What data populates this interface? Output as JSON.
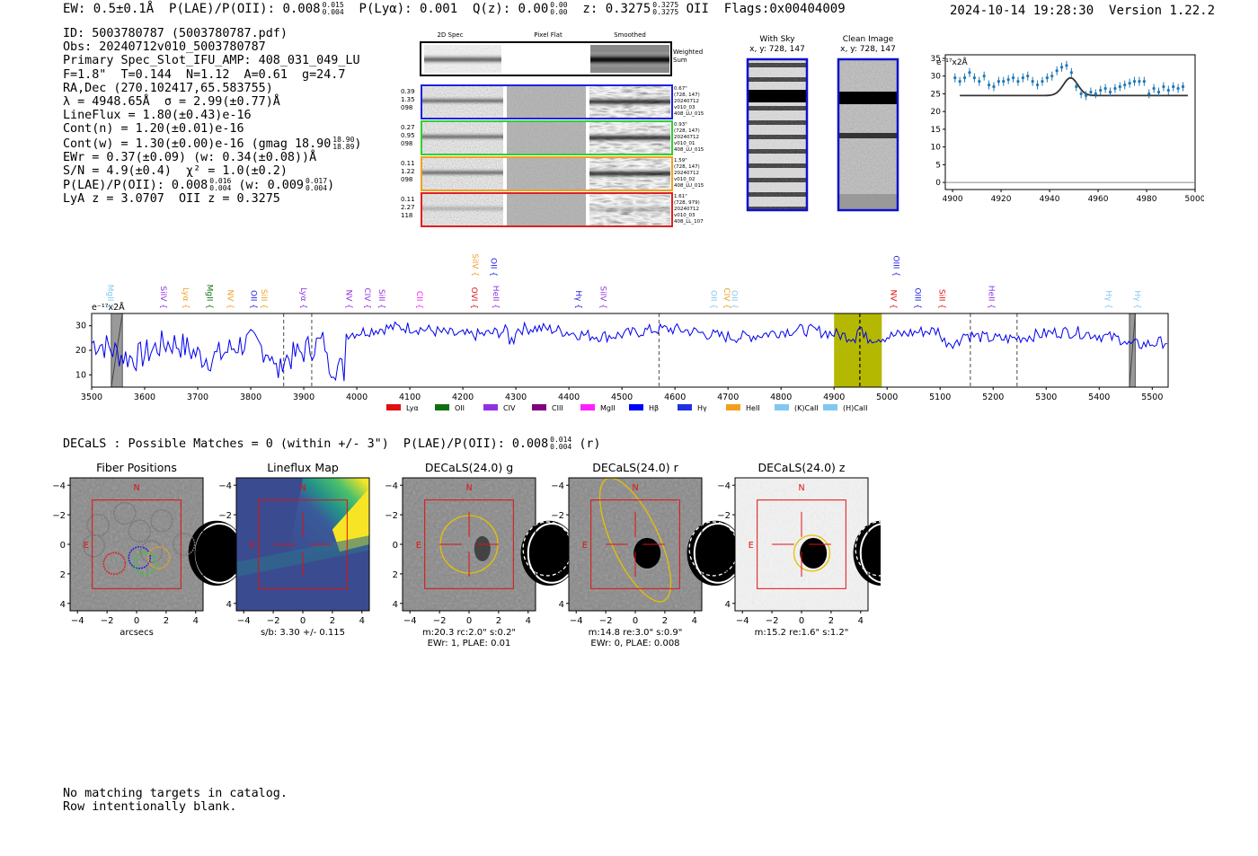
{
  "header": {
    "ew": "EW: 0.5±0.1Å",
    "plae_label": "P(LAE)/P(OII): 0.008",
    "plae_hi": "0.015",
    "plae_lo": "0.004",
    "plya": "P(Lyα): 0.001",
    "qz_label": "Q(z): 0.00",
    "qz_hi": "0.00",
    "qz_lo": "0.00",
    "z_label": "z: 0.3275",
    "z_hi": "0.3275",
    "z_lo": "0.3275",
    "z_line": "OII",
    "flags": "Flags:0x00404009",
    "datetime": "2024-10-14 19:28:30",
    "version": "Version 1.22.2"
  },
  "info": {
    "id": "ID: 5003780787 (5003780787.pdf)",
    "obs": "Obs: 20240712v010_5003780787",
    "primary": "Primary Spec_Slot_IFU_AMP: 408_031_049_LU",
    "params": "F=1.8\"  T=0.144  N=1.12  A=0.61  g=24.7",
    "radec": "RA,Dec (270.102417,65.583755)",
    "lambda": "λ = 4948.65Å  σ = 2.99(±0.77)Å",
    "lineflux": "LineFlux = 1.80(±0.43)e-16",
    "contn": "Cont(n) = 1.20(±0.01)e-16",
    "contw": "Cont(w) = 1.30(±0.00)e-16 (gmag 18.90",
    "gmag_hi": "18.90",
    "gmag_lo": "18.89",
    "ewr": "EWr = 0.37(±0.09) (w: 0.34(±0.08))Å",
    "sn": "S/N = 4.9(±0.4)  χ² = 1.0(±0.2)",
    "plae": "P(LAE)/P(OII): 0.008",
    "plae_hi": "0.016",
    "plae_lo": "0.004",
    "plae_w": "(w: 0.009",
    "plae_w_hi": "0.017",
    "plae_w_lo": "0.004",
    "lya_z": "LyA z = 3.0707  OII z = 0.3275"
  },
  "cutouts": {
    "col_2d": "2D Spec",
    "col_flat": "Pixel Flat",
    "col_smooth": "Smoothed",
    "weighted_1": "Weighted",
    "weighted_2": "Sum",
    "rows": [
      {
        "left": [
          "0.39",
          "1.35",
          "098"
        ],
        "right": [
          "0.67\"",
          "(728, 147)",
          "20240712",
          "v010_03",
          "408_LU_015"
        ],
        "color": "#2020e0"
      },
      {
        "left": [
          "0.27",
          "0.95",
          "098"
        ],
        "right": [
          "0.93\"",
          "(728, 147)",
          "20240712",
          "v010_01",
          "408_LU_015"
        ],
        "color": "#30d030"
      },
      {
        "left": [
          "0.11",
          "1.22",
          "098"
        ],
        "right": [
          "1.59\"",
          "(728, 147)",
          "20240712",
          "v010_02",
          "408_LU_015"
        ],
        "color": "#f0a020"
      },
      {
        "left": [
          "0.11",
          "2.27",
          "118"
        ],
        "right": [
          "1.61\"",
          "(728, 979)",
          "20240712",
          "v010_03",
          "408_LL_107"
        ],
        "color": "#e02020"
      }
    ]
  },
  "sky": {
    "with_sky_title": "With Sky",
    "with_sky_xy": "x, y: 728, 147",
    "clean_title": "Clean Image",
    "clean_xy": "x, y: 728, 147"
  },
  "zoom_plot": {
    "unit_label": "e⁻¹⁷x2Å",
    "xticks": [
      "4900",
      "4920",
      "4940",
      "4960",
      "4980",
      "5000"
    ],
    "yticks": [
      "0",
      "5",
      "10",
      "15",
      "20",
      "25",
      "30",
      "35"
    ]
  },
  "chart_data": [
    {
      "type": "scatter",
      "title": "",
      "xlabel": "wavelength (Å)",
      "ylabel": "e⁻¹⁷x2Å",
      "xlim": [
        4897,
        5000
      ],
      "ylim": [
        -2,
        36
      ],
      "x": [
        4901,
        4903,
        4905,
        4907,
        4909,
        4911,
        4913,
        4915,
        4917,
        4919,
        4921,
        4923,
        4925,
        4927,
        4929,
        4931,
        4933,
        4935,
        4937,
        4939,
        4941,
        4943,
        4945,
        4947,
        4949,
        4951,
        4953,
        4955,
        4957,
        4959,
        4961,
        4963,
        4965,
        4967,
        4969,
        4971,
        4973,
        4975,
        4977,
        4979,
        4981,
        4983,
        4985,
        4987,
        4989,
        4991,
        4993,
        4995
      ],
      "y": [
        29.5,
        28.5,
        29.5,
        31,
        29.5,
        28.5,
        30,
        27.5,
        27,
        28.5,
        28.5,
        29,
        29.5,
        28.5,
        29.5,
        30,
        28.5,
        27.5,
        28.5,
        29.5,
        30,
        31.5,
        32.5,
        33,
        31,
        27,
        25,
        24.5,
        25.5,
        25,
        26,
        26.5,
        25.5,
        26.5,
        27,
        27.5,
        28,
        28.5,
        28.5,
        28.5,
        25,
        26.5,
        25.5,
        27,
        26,
        27,
        26.5,
        27
      ],
      "fit_model": {
        "baseline": 24.5,
        "peak": 29.5,
        "center": 4948.65,
        "sigma": 2.99
      }
    },
    {
      "type": "line",
      "title": "",
      "xlabel": "",
      "ylabel": "e⁻¹⁷x2Å",
      "xlim": [
        3500,
        5530
      ],
      "ylim": [
        5,
        35
      ],
      "xticks": [
        3500,
        3600,
        3700,
        3800,
        3900,
        4000,
        4100,
        4200,
        4300,
        4400,
        4500,
        4600,
        4700,
        4800,
        4900,
        5000,
        5100,
        5200,
        5300,
        5400,
        5500
      ],
      "yticks": [
        10,
        20,
        30
      ],
      "highlight_range": [
        4900,
        4990
      ],
      "line_marker": 4948.65,
      "legend": [
        {
          "name": "Lyα",
          "color": "#e01010"
        },
        {
          "name": "OII",
          "color": "#107010"
        },
        {
          "name": "CIV",
          "color": "#9030e0"
        },
        {
          "name": "CIII",
          "color": "#800080"
        },
        {
          "name": "MgII",
          "color": "#ff20ff"
        },
        {
          "name": "Hβ",
          "color": "#0000ff"
        },
        {
          "name": "Hγ",
          "color": "#2030e0"
        },
        {
          "name": "HeII",
          "color": "#f0a020"
        },
        {
          "name": "(K)CaII",
          "color": "#80c8f0"
        },
        {
          "name": "(H)CaII",
          "color": "#80c8f0"
        }
      ],
      "line_labels": [
        {
          "label": "MgII",
          "x": 3525,
          "color": "#80c8f0",
          "row": 3
        },
        {
          "label": "SiIV",
          "x": 3625,
          "color": "#9030e0",
          "row": 2
        },
        {
          "label": "Lyα",
          "x": 3668,
          "color": "#f0a020",
          "row": 2
        },
        {
          "label": "MgII",
          "x": 3713,
          "color": "#107010",
          "row": 2
        },
        {
          "label": "NV",
          "x": 3752,
          "color": "#f0a020",
          "row": 2
        },
        {
          "label": "OII",
          "x": 3796,
          "color": "#2020e0",
          "row": 2
        },
        {
          "label": "SiII",
          "x": 3815,
          "color": "#f0a020",
          "row": 2
        },
        {
          "label": "Lyα",
          "x": 3890,
          "color": "#9030e0",
          "row": 2
        },
        {
          "label": "NV",
          "x": 3975,
          "color": "#9030e0",
          "row": 2
        },
        {
          "label": "CIV",
          "x": 4010,
          "color": "#9030e0",
          "row": 2
        },
        {
          "label": "SiII",
          "x": 4037,
          "color": "#9030e0",
          "row": 2
        },
        {
          "label": "CII",
          "x": 4108,
          "color": "#ff20ff",
          "row": 2
        },
        {
          "label": "OVI",
          "x": 4212,
          "color": "#e01010",
          "row": 2
        },
        {
          "label": "HeII",
          "x": 4252,
          "color": "#9030e0",
          "row": 2
        },
        {
          "label": "SiIV",
          "x": 4213,
          "color": "#f0a020",
          "row": 1
        },
        {
          "label": "OII",
          "x": 4248,
          "color": "#2020e0",
          "row": 1
        },
        {
          "label": "Hγ",
          "x": 4408,
          "color": "#2020e0",
          "row": 2
        },
        {
          "label": "SiIV",
          "x": 4455,
          "color": "#9030e0",
          "row": 2
        },
        {
          "label": "OII",
          "x": 4663,
          "color": "#80c8f0",
          "row": 2
        },
        {
          "label": "CIV",
          "x": 4688,
          "color": "#f0a020",
          "row": 2
        },
        {
          "label": "OII",
          "x": 4702,
          "color": "#80c8f0",
          "row": 2
        },
        {
          "label": "OIII",
          "x": 5007,
          "color": "#2020e0",
          "row": 1
        },
        {
          "label": "NV",
          "x": 5002,
          "color": "#e01010",
          "row": 2
        },
        {
          "label": "OIII",
          "x": 5048,
          "color": "#2020e0",
          "row": 2
        },
        {
          "label": "SiII",
          "x": 5094,
          "color": "#e01010",
          "row": 2
        },
        {
          "label": "HeII",
          "x": 5187,
          "color": "#9030e0",
          "row": 2
        },
        {
          "label": "Hγ",
          "x": 5408,
          "color": "#80c8f0",
          "row": 2
        },
        {
          "label": "Hγ",
          "x": 5462,
          "color": "#80c8f0",
          "row": 2
        }
      ]
    }
  ],
  "decals": {
    "summary": "DECaLS : Possible Matches = 0 (within +/- 3\")  P(LAE)/P(OII): 0.008",
    "summary_hi": "0.014",
    "summary_lo": "0.004",
    "summary_band": "(r)",
    "panels": [
      {
        "title": "Fiber Positions",
        "caption1": "arcsecs",
        "caption2": ""
      },
      {
        "title": "Lineflux Map",
        "caption1": "s/b: 3.30 +/- 0.115",
        "caption2": ""
      },
      {
        "title": "DECaLS(24.0) g",
        "caption1": "m:20.3 rc:2.0\"  s:0.2\"",
        "caption2": "EWr: 1, PLAE: 0.01"
      },
      {
        "title": "DECaLS(24.0) r",
        "caption1": "m:14.8  re:3.0\"  s:0.9\"",
        "caption2": "EWr: 0, PLAE: 0.008"
      },
      {
        "title": "DECaLS(24.0) z",
        "caption1": "m:15.2  re:1.6\"  s:1.2\"",
        "caption2": ""
      }
    ],
    "ticks": [
      "−4",
      "−2",
      "0",
      "2",
      "4"
    ],
    "north": "N",
    "east": "E"
  },
  "catalog": {
    "line1": "No matching targets in catalog.",
    "line2": "Row intentionally blank."
  }
}
